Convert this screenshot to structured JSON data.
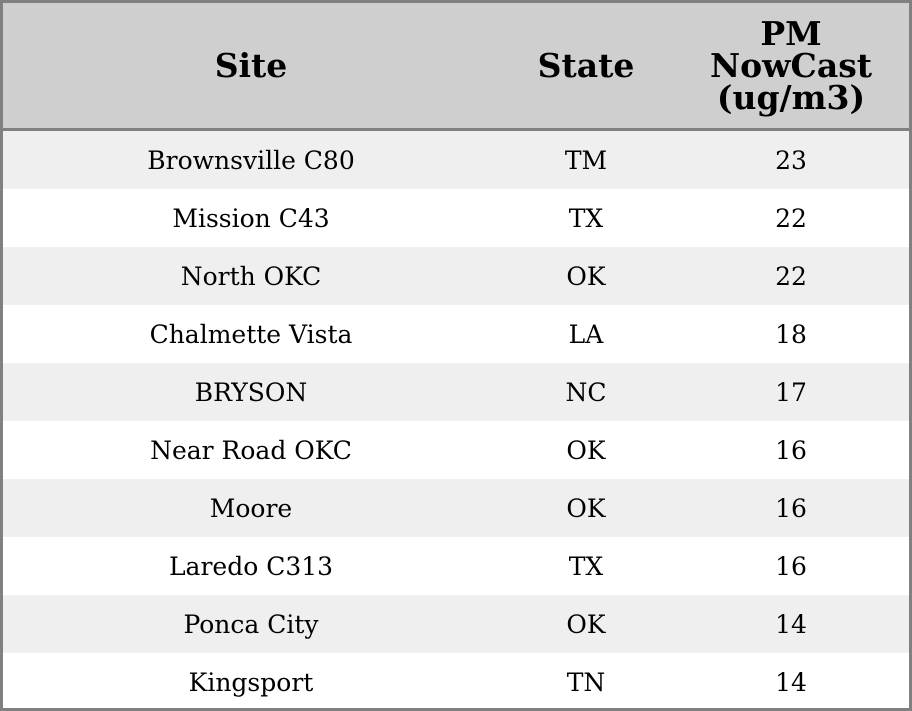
{
  "table": {
    "headers": {
      "site": "Site",
      "state": "State",
      "value": "PM NowCast (ug/m3)"
    },
    "rows": [
      {
        "site": "Brownsville C80",
        "state": "TM",
        "value": "23"
      },
      {
        "site": "Mission C43",
        "state": "TX",
        "value": "22"
      },
      {
        "site": "North OKC",
        "state": "OK",
        "value": "22"
      },
      {
        "site": "Chalmette Vista",
        "state": "LA",
        "value": "18"
      },
      {
        "site": "BRYSON",
        "state": "NC",
        "value": "17"
      },
      {
        "site": "Near Road OKC",
        "state": "OK",
        "value": "16"
      },
      {
        "site": "Moore",
        "state": "OK",
        "value": "16"
      },
      {
        "site": "Laredo C313",
        "state": "TX",
        "value": "16"
      },
      {
        "site": "Ponca City",
        "state": "OK",
        "value": "14"
      },
      {
        "site": "Kingsport",
        "state": "TN",
        "value": "14"
      }
    ]
  },
  "colors": {
    "header_bg": "#cfcfcf",
    "border": "#808080",
    "row_alt": "#efefef",
    "row_base": "#ffffff"
  }
}
